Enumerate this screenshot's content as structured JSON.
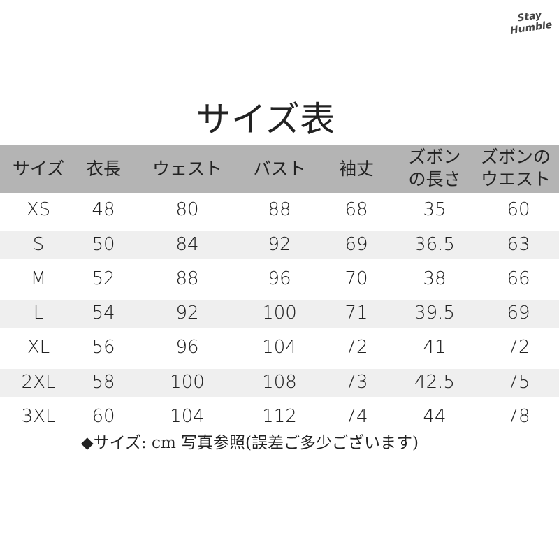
{
  "logo": [
    "Stay",
    "Humble"
  ],
  "title": "サイズ表",
  "table": {
    "header": [
      [
        "サイズ"
      ],
      [
        "衣長"
      ],
      [
        "ウェスト"
      ],
      [
        "バスト"
      ],
      [
        "袖丈"
      ],
      [
        "ズボン",
        "の長さ"
      ],
      [
        "ズボンの",
        "ウエスト"
      ]
    ],
    "rows": [
      [
        "XS",
        48,
        80,
        88,
        68,
        35,
        60
      ],
      [
        "S",
        50,
        84,
        92,
        69,
        36.5,
        63
      ],
      [
        "M",
        52,
        88,
        96,
        70,
        38,
        66
      ],
      [
        "L",
        54,
        92,
        100,
        71,
        39.5,
        69
      ],
      [
        "XL",
        56,
        96,
        104,
        72,
        41,
        72
      ],
      [
        "2XL",
        58,
        100,
        108,
        73,
        42.5,
        75
      ],
      [
        "3XL",
        60,
        104,
        112,
        74,
        44,
        78
      ]
    ]
  },
  "note": "◆サイズ: cm 写真参照(誤差ご多少ございます)"
}
